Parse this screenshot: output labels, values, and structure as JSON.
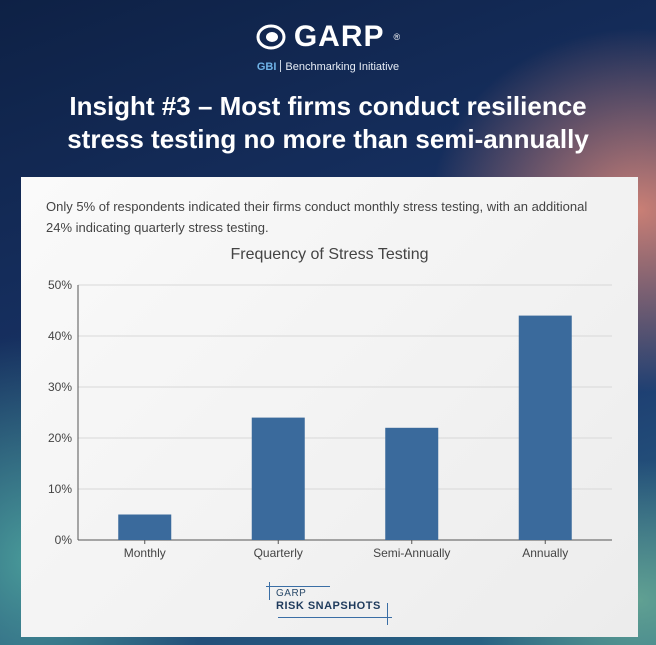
{
  "header": {
    "logo_text": "GARP",
    "logo_reg": "®",
    "gbi": "GBI",
    "subtitle": "Benchmarking Initiative",
    "title_line1": "Insight #3 – Most firms conduct resilience",
    "title_line2": "stress testing no more than semi-annually"
  },
  "card": {
    "description": "Only 5% of respondents indicated their firms conduct monthly stress testing, with an additional 24% indicating quarterly stress testing."
  },
  "chart_data": {
    "type": "bar",
    "title": "Frequency of Stress Testing",
    "categories": [
      "Monthly",
      "Quarterly",
      "Semi-Annually",
      "Annually"
    ],
    "values": [
      5,
      24,
      22,
      44
    ],
    "yticks": [
      "0%",
      "10%",
      "20%",
      "30%",
      "40%",
      "50%"
    ],
    "ylim": [
      0,
      50
    ],
    "xlabel": "",
    "ylabel": "",
    "grid": true,
    "bar_color": "#3a6a9c"
  },
  "footer": {
    "line1": "GARP",
    "line2": "RISK SNAPSHOTS"
  }
}
